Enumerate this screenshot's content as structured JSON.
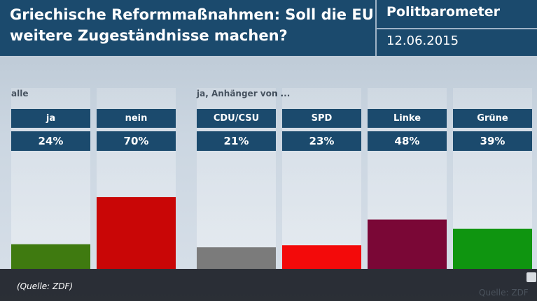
{
  "header": {
    "title_line1": "Griechische Reformmaßnahmen: Soll die EU",
    "title_line2": "weitere Zugeständnisse machen?",
    "brand": "Politbarometer",
    "date": "12.06.2015"
  },
  "chart_data": {
    "type": "bar",
    "title": "Griechische Reformmaßnahmen: Soll die EU weitere Zugeständnisse machen?",
    "groups": [
      {
        "label": "alle",
        "categories": [
          "ja",
          "nein"
        ]
      },
      {
        "label": "ja, Anhänger von ...",
        "categories": [
          "CDU/CSU",
          "SPD",
          "Linke",
          "Grüne"
        ]
      }
    ],
    "categories": [
      "ja",
      "nein",
      "CDU/CSU",
      "SPD",
      "Linke",
      "Grüne"
    ],
    "values": [
      24,
      70,
      21,
      23,
      48,
      39
    ],
    "value_labels": [
      "24%",
      "70%",
      "21%",
      "23%",
      "48%",
      "39%"
    ],
    "colors": [
      "#3f7a10",
      "#c90606",
      "#7b7b7b",
      "#f30a0a",
      "#7a0736",
      "#0f9510"
    ],
    "ylim": [
      0,
      100
    ],
    "xlabel": "",
    "ylabel": ""
  },
  "footer": {
    "source": "(Quelle: ZDF)",
    "source_corner": "Quelle: ZDF"
  }
}
